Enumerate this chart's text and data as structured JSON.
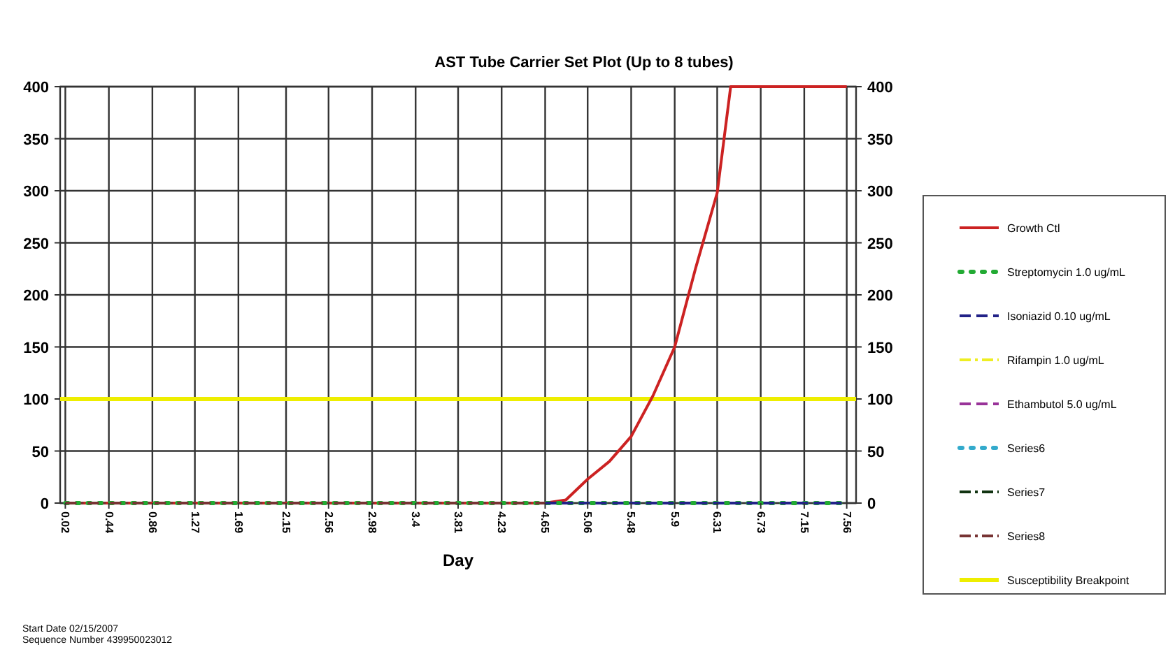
{
  "chart_data": {
    "type": "line",
    "title": "AST Tube Carrier Set Plot (Up to 8 tubes)",
    "xlabel": "Day",
    "xlim": [
      -0.03,
      7.65
    ],
    "xticks": [
      0.02,
      0.44,
      0.86,
      1.27,
      1.69,
      2.15,
      2.56,
      2.98,
      3.4,
      3.81,
      4.23,
      4.65,
      5.06,
      5.48,
      5.9,
      6.31,
      6.73,
      7.15,
      7.56
    ],
    "ylim": [
      0,
      400
    ],
    "yticks": [
      0,
      50,
      100,
      150,
      200,
      250,
      300,
      350,
      400
    ],
    "y2lim": [
      0,
      400
    ],
    "y2ticks": [
      0,
      50,
      100,
      150,
      200,
      250,
      300,
      350,
      400
    ],
    "grid": true,
    "legend": "right",
    "series": [
      {
        "name": "Growth Ctl",
        "color": "#cc2222",
        "line_style": "solid",
        "x": [
          0.02,
          4.65,
          4.85,
          5.06,
          5.27,
          5.48,
          5.69,
          5.9,
          6.1,
          6.31,
          6.44,
          7.56
        ],
        "values": [
          0,
          0,
          3,
          23,
          40,
          64,
          103,
          150,
          225,
          298,
          400,
          400
        ]
      },
      {
        "name": "Streptomycin 1.0 ug/mL",
        "color": "#22aa33",
        "line_style": "dotted",
        "x": [
          0.02,
          7.56
        ],
        "values": [
          0,
          0
        ]
      },
      {
        "name": "Isoniazid 0.10 ug/mL",
        "color": "#222288",
        "line_style": "dashed",
        "x": [
          4.65,
          7.56
        ],
        "values": [
          0,
          0
        ]
      },
      {
        "name": "Rifampin 1.0 ug/mL",
        "color": "#eeee22",
        "line_style": "dashdot"
      },
      {
        "name": "Ethambutol 5.0 ug/mL",
        "color": "#993399",
        "line_style": "dashed"
      },
      {
        "name": "Series6",
        "color": "#33aacc",
        "line_style": "dotted"
      },
      {
        "name": "Series7",
        "color": "#113311",
        "line_style": "dashdot"
      },
      {
        "name": "Series8",
        "color": "#773333",
        "line_style": "dashdot",
        "x": [
          0.02,
          4.65
        ],
        "values": [
          0,
          0
        ]
      }
    ],
    "ref_lines": [
      {
        "axis": "y",
        "value": 100,
        "label": "Susceptibility Breakpoint",
        "color": "#eeee00"
      }
    ],
    "annotations": [
      "Start Date  02/15/2007",
      "Sequence Number  439950023012"
    ]
  }
}
